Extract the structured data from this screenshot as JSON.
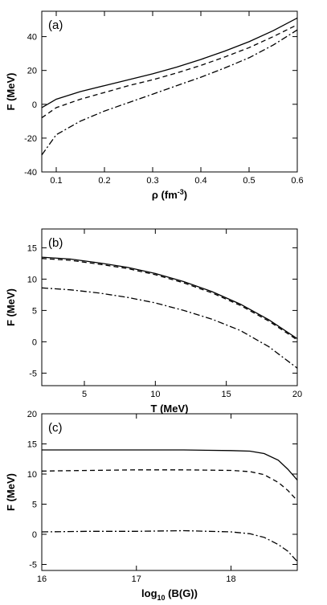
{
  "chart_data": [
    {
      "type": "line",
      "panel_label": "(a)",
      "xlabel": "ρ (fm",
      "xlabel_exp": "-3",
      "xlabel_close": ")",
      "ylabel": "F (MeV)",
      "xlim": [
        0.07,
        0.6
      ],
      "ylim": [
        -40,
        55
      ],
      "xticks": [
        0.1,
        0.2,
        0.3,
        0.4,
        0.5,
        0.6
      ],
      "xtick_labels": [
        "0.1",
        "0.2",
        "0.3",
        "0.4",
        "0.5",
        "0.6"
      ],
      "yticks": [
        -40,
        -20,
        0,
        20,
        40
      ],
      "ytick_labels": [
        "-40",
        "-20",
        "0",
        "20",
        "40"
      ],
      "grid": false,
      "series": [
        {
          "style": "solid",
          "x": [
            0.07,
            0.1,
            0.15,
            0.2,
            0.25,
            0.3,
            0.35,
            0.4,
            0.45,
            0.5,
            0.55,
            0.6
          ],
          "y": [
            -2,
            3,
            7.5,
            11,
            14.5,
            18,
            22,
            26.5,
            31.5,
            37,
            43.5,
            51
          ]
        },
        {
          "style": "dashed",
          "x": [
            0.07,
            0.1,
            0.15,
            0.2,
            0.25,
            0.3,
            0.35,
            0.4,
            0.45,
            0.5,
            0.55,
            0.6
          ],
          "y": [
            -8,
            -2,
            3,
            7,
            11,
            14.5,
            18.5,
            23,
            28,
            33.5,
            40,
            47
          ]
        },
        {
          "style": "dashdot",
          "x": [
            0.07,
            0.1,
            0.15,
            0.2,
            0.25,
            0.3,
            0.35,
            0.4,
            0.45,
            0.5,
            0.55,
            0.6
          ],
          "y": [
            -30,
            -18,
            -10,
            -4,
            1,
            6,
            11,
            16,
            21.5,
            27.5,
            35,
            44
          ]
        }
      ]
    },
    {
      "type": "line",
      "panel_label": "(b)",
      "xlabel": "T (MeV)",
      "ylabel": "F (MeV)",
      "xlim": [
        2,
        20
      ],
      "ylim": [
        -7,
        18
      ],
      "xticks": [
        5,
        10,
        15,
        20
      ],
      "xtick_labels": [
        "5",
        "10",
        "15",
        "20"
      ],
      "yticks": [
        -5,
        0,
        5,
        10,
        15
      ],
      "ytick_labels": [
        "-5",
        "0",
        "5",
        "10",
        "15"
      ],
      "grid": false,
      "series": [
        {
          "style": "solid",
          "x": [
            2,
            4,
            6,
            8,
            10,
            12,
            14,
            16,
            18,
            20
          ],
          "y": [
            13.5,
            13.2,
            12.6,
            11.9,
            10.9,
            9.6,
            8.0,
            6.0,
            3.5,
            0.5
          ]
        },
        {
          "style": "dashed",
          "x": [
            2,
            4,
            6,
            8,
            10,
            12,
            14,
            16,
            18,
            20
          ],
          "y": [
            13.3,
            13.0,
            12.4,
            11.7,
            10.7,
            9.4,
            7.8,
            5.8,
            3.3,
            0.3
          ]
        },
        {
          "style": "dashdot",
          "x": [
            2,
            4,
            6,
            8,
            10,
            12,
            14,
            16,
            18,
            20
          ],
          "y": [
            8.6,
            8.3,
            7.8,
            7.1,
            6.2,
            5.0,
            3.6,
            1.8,
            -0.8,
            -4.2
          ]
        }
      ]
    },
    {
      "type": "line",
      "panel_label": "(c)",
      "xlabel": "log",
      "xlabel_sub": "10",
      "xlabel_rest": " (B(G))",
      "ylabel": "F (MeV)",
      "xlim": [
        16,
        18.7
      ],
      "ylim": [
        -6,
        20
      ],
      "xticks": [
        16,
        17,
        18
      ],
      "xtick_labels": [
        "16",
        "17",
        "18"
      ],
      "yticks": [
        -5,
        0,
        5,
        10,
        15,
        20
      ],
      "ytick_labels": [
        "-5",
        "0",
        "5",
        "10",
        "15",
        "20"
      ],
      "grid": false,
      "series": [
        {
          "style": "solid",
          "x": [
            16,
            16.5,
            17,
            17.5,
            18,
            18.2,
            18.35,
            18.5,
            18.6,
            18.7
          ],
          "y": [
            14,
            14,
            14,
            14,
            13.9,
            13.8,
            13.4,
            12.3,
            10.8,
            9
          ]
        },
        {
          "style": "dashed",
          "x": [
            16,
            16.5,
            17,
            17.5,
            18,
            18.2,
            18.35,
            18.5,
            18.6,
            18.7
          ],
          "y": [
            10.5,
            10.6,
            10.7,
            10.7,
            10.6,
            10.4,
            9.9,
            8.6,
            7.3,
            5.6
          ]
        },
        {
          "style": "dashdot",
          "x": [
            16,
            16.5,
            17,
            17.5,
            18,
            18.2,
            18.35,
            18.5,
            18.6,
            18.7
          ],
          "y": [
            0.4,
            0.5,
            0.5,
            0.6,
            0.4,
            0.1,
            -0.5,
            -1.7,
            -2.8,
            -4.5
          ]
        }
      ]
    }
  ]
}
